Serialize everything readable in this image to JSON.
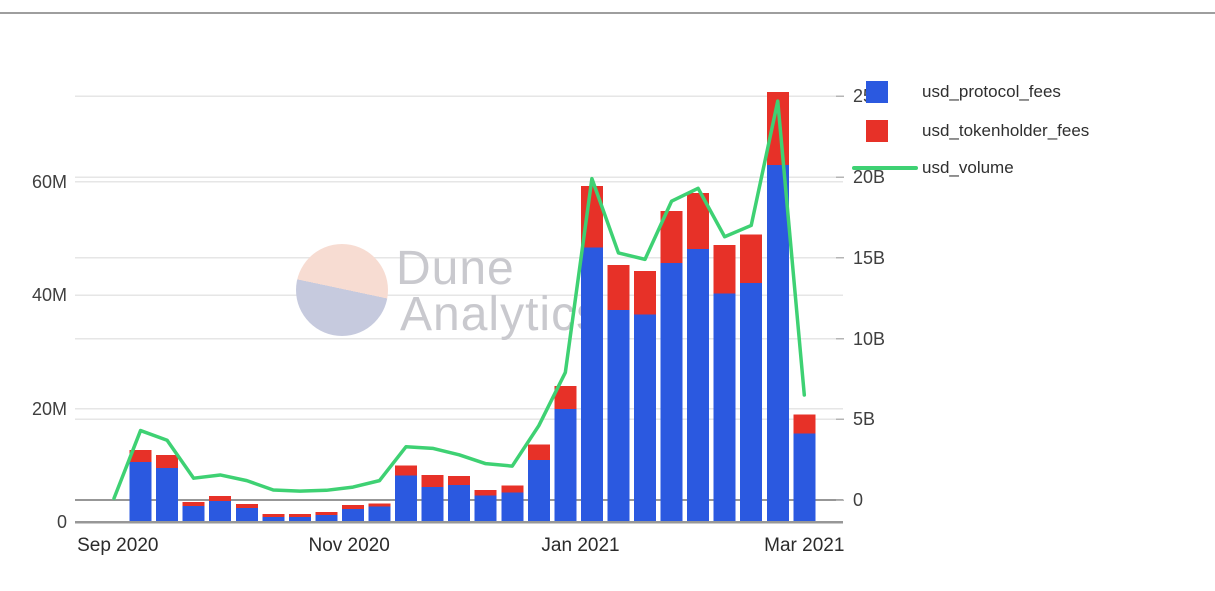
{
  "chart_data": {
    "type": "bar",
    "subtype": "stacked bars with overlaid line, dual y-axes",
    "x": [
      "2020-08-31",
      "2020-09-07",
      "2020-09-14",
      "2020-09-21",
      "2020-09-28",
      "2020-10-05",
      "2020-10-12",
      "2020-10-19",
      "2020-10-26",
      "2020-11-02",
      "2020-11-09",
      "2020-11-16",
      "2020-11-23",
      "2020-11-30",
      "2020-12-07",
      "2020-12-14",
      "2020-12-21",
      "2020-12-28",
      "2021-01-04",
      "2021-01-11",
      "2021-01-18",
      "2021-01-25",
      "2021-02-01",
      "2021-02-08",
      "2021-02-15",
      "2021-02-22",
      "2021-03-01"
    ],
    "series": [
      {
        "name": "usd_protocol_fees",
        "type": "bar",
        "stack": "fees",
        "axis": "left",
        "unit": "M USD",
        "color": "#2b59e0",
        "values": [
          0,
          10.6,
          9.5,
          2.8,
          3.7,
          2.5,
          0.9,
          0.9,
          1.2,
          2.3,
          2.7,
          8.2,
          6.2,
          6.5,
          4.7,
          5.2,
          10.9,
          19.9,
          48.4,
          37.4,
          36.6,
          45.6,
          48.1,
          40.3,
          42.1,
          62.9,
          15.6
        ]
      },
      {
        "name": "usd_tokenholder_fees",
        "type": "bar",
        "stack": "fees",
        "axis": "left",
        "unit": "M USD",
        "color": "#e73128",
        "values": [
          0,
          2.1,
          2.3,
          0.7,
          0.9,
          0.7,
          0.5,
          0.5,
          0.6,
          0.7,
          0.6,
          1.8,
          2.1,
          1.6,
          0.9,
          1.2,
          2.8,
          4.1,
          10.8,
          7.9,
          7.6,
          9.2,
          9.9,
          8.5,
          8.6,
          12.9,
          3.3
        ]
      },
      {
        "name": "usd_volume",
        "type": "line",
        "axis": "right",
        "unit": "B USD",
        "color": "#3ed173",
        "values": [
          0.1,
          4.3,
          3.7,
          1.35,
          1.55,
          1.2,
          0.62,
          0.55,
          0.6,
          0.8,
          1.2,
          3.3,
          3.2,
          2.8,
          2.25,
          2.1,
          4.6,
          7.9,
          19.9,
          15.3,
          14.9,
          18.5,
          19.3,
          16.3,
          17.0,
          24.7,
          6.5
        ]
      }
    ],
    "left_axis": {
      "tick_labels": [
        "0",
        "20M",
        "40M",
        "60M"
      ],
      "tick_values": [
        0,
        20,
        40,
        60
      ],
      "range_M": [
        0,
        79
      ]
    },
    "right_axis": {
      "tick_labels": [
        "0",
        "5B",
        "10B",
        "15B",
        "20B",
        "25B"
      ],
      "tick_values": [
        0,
        5,
        10,
        15,
        20,
        25
      ],
      "range_B": [
        -1.4,
        26.8
      ]
    },
    "x_axis": {
      "tick_labels": [
        "Sep 2020",
        "Nov 2020",
        "Jan 2021",
        "Mar 2021"
      ],
      "tick_day_offsets": [
        1,
        62,
        123,
        182
      ]
    },
    "grid": true,
    "legend_position": "top-right",
    "title": ""
  },
  "legend": {
    "items": [
      {
        "label": "usd_protocol_fees",
        "sample": "square",
        "color": "#2b59e0"
      },
      {
        "label": "usd_tokenholder_fees",
        "sample": "square",
        "color": "#e73128"
      },
      {
        "label": "usd_volume",
        "sample": "line",
        "color": "#3ed173"
      }
    ]
  },
  "watermark": {
    "line1": "Dune",
    "line2": "Analytics"
  },
  "colors": {
    "protocol_fees_blue": "#2b59e0",
    "tokenholder_fees_red": "#e73128",
    "volume_green": "#3ed173",
    "gridline": "#e6e6e6",
    "axis_line": "#979797",
    "tick_text": "#3f3f3f",
    "watermark_pink": "#f7dcd2",
    "watermark_lavender": "#c6cade",
    "watermark_text": "#c9c9ce"
  }
}
